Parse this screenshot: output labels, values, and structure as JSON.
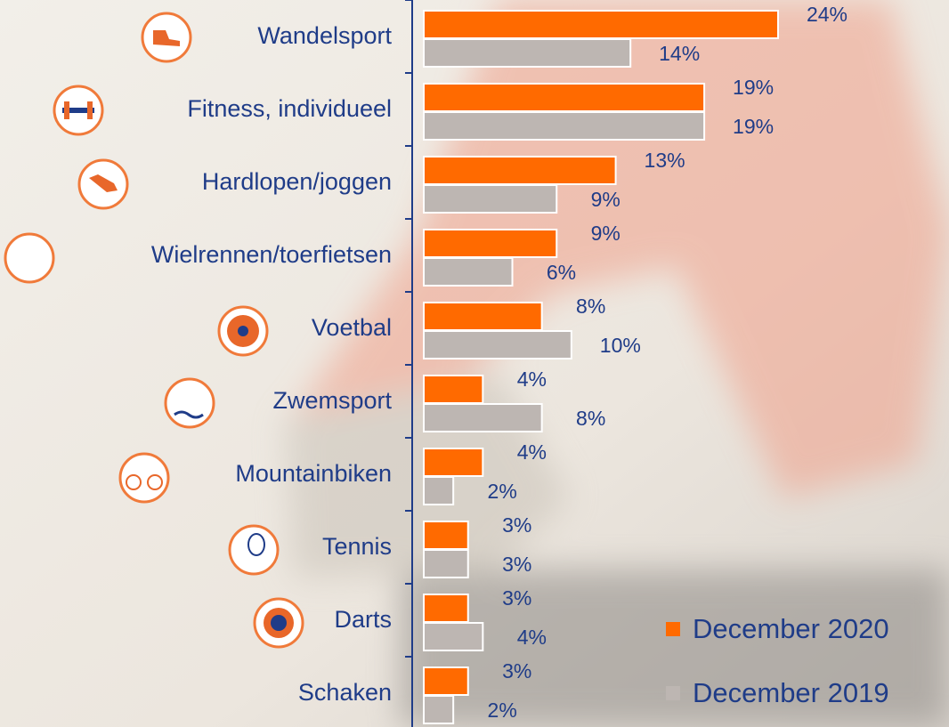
{
  "chart_data": {
    "type": "bar",
    "orientation": "horizontal",
    "categories": [
      "Wandelsport",
      "Fitness, individueel",
      "Hardlopen/joggen",
      "Wielrennen/toerfietsen",
      "Voetbal",
      "Zwemsport",
      "Mountainbiken",
      "Tennis",
      "Darts",
      "Schaken"
    ],
    "series": [
      {
        "name": "December 2020",
        "color": "#ff6a00",
        "values": [
          24,
          19,
          13,
          9,
          8,
          4,
          4,
          3,
          3,
          3
        ],
        "value_labels": [
          "24%",
          "19%",
          "13%",
          "9%",
          "8%",
          "4%",
          "4%",
          "3%",
          "3%",
          "3%"
        ]
      },
      {
        "name": "December 2019",
        "color": "#bdb6b2",
        "values": [
          14,
          19,
          9,
          6,
          10,
          8,
          2,
          3,
          4,
          2
        ],
        "value_labels": [
          "14%",
          "19%",
          "9%",
          "6%",
          "10%",
          "8%",
          "2%",
          "3%",
          "4%",
          "2%"
        ]
      }
    ],
    "legend": "bottom-right"
  }
}
